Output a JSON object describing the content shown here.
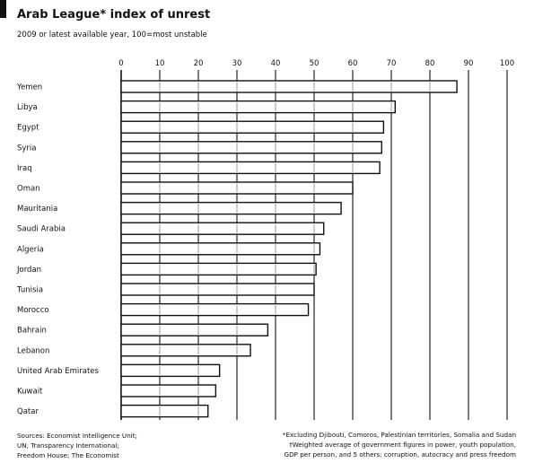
{
  "header": {
    "title": "Arab League* index of unrest",
    "subtitle": "2009 or latest available year, 100=most unstable"
  },
  "footer": {
    "sources": [
      "Sources: Economist Intelligence Unit;",
      "UN; Transparency International;",
      "Freedom House; The Economist"
    ],
    "notes": [
      "*Excluding Djibouti, Comoros, Palestinian territories, Somalia and Sudan",
      "†Weighted average of government figures in power, youth population,",
      "GDP per person, and 5 others: corruption, autocracy and press freedom"
    ]
  },
  "colors": {
    "bar_fill": "#ffffff",
    "bar_stroke": "#111111",
    "grid": "#111111"
  },
  "chart_data": {
    "type": "bar",
    "orientation": "horizontal",
    "title": "Arab League* index of unrest",
    "subtitle": "2009 or latest available year, 100=most unstable",
    "categories": [
      "Yemen",
      "Libya",
      "Egypt",
      "Syria",
      "Iraq",
      "Oman",
      "Mauritania",
      "Saudi Arabia",
      "Algeria",
      "Jordan",
      "Tunisia",
      "Morocco",
      "Bahrain",
      "Lebanon",
      "United Arab Emirates",
      "Kuwait",
      "Qatar"
    ],
    "values": [
      87,
      71,
      68,
      67.5,
      67,
      60,
      57,
      52.5,
      51.5,
      50.5,
      50,
      48.5,
      38,
      33.5,
      25.5,
      24.5,
      22.5
    ],
    "xlim": [
      0,
      100
    ],
    "xticks": [
      0,
      10,
      20,
      30,
      40,
      50,
      60,
      70,
      80,
      90,
      100
    ],
    "grid": true,
    "xlabel": "",
    "ylabel": ""
  }
}
